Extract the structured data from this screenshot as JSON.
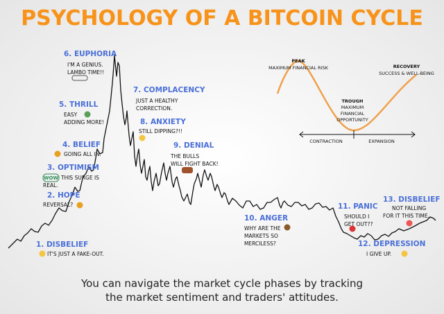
{
  "title": "PSYCHOLOGY OF A BITCOIN CYCLE",
  "phases": [
    {
      "name": "1. DISBELIEF",
      "lines": [
        "IT'S JUST A FAKE-OUT."
      ]
    },
    {
      "name": "2. HOPE",
      "lines": [
        "REVERSAL?"
      ]
    },
    {
      "name": "3. OPTIMISM",
      "badge": "WOW",
      "lines": [
        "THIS SURGE IS",
        "REAL."
      ]
    },
    {
      "name": "4. BELIEF",
      "lines": [
        "GOING ALL IN."
      ]
    },
    {
      "name": "5. THRILL",
      "lines": [
        "EASY",
        "ADDING MORE!"
      ]
    },
    {
      "name": "6. EUPHORIA",
      "lines": [
        "I'M A GENIUS.",
        "LAMBO TIME!!"
      ]
    },
    {
      "name": "7. COMPLACENCY",
      "lines": [
        "JUST A HEALTHY",
        "CORRECTION."
      ]
    },
    {
      "name": "8. ANXIETY",
      "lines": [
        "STILL DIPPING?!!"
      ]
    },
    {
      "name": "9. DENIAL",
      "lines": [
        "THE BULLS",
        "WILL FIGHT BACK!"
      ]
    },
    {
      "name": "10. ANGER",
      "lines": [
        "WHY ARE THE",
        "MARKETS SO",
        "MERCILESS?"
      ]
    },
    {
      "name": "11. PANIC",
      "lines": [
        "SHOULD I",
        "GET OUT??"
      ]
    },
    {
      "name": "12. DEPRESSION",
      "lines": [
        "I GIVE UP."
      ]
    },
    {
      "name": "13. DISBELIEF",
      "lines": [
        "NOT FALLING",
        "FOR IT THIS TIME."
      ]
    }
  ],
  "inset": {
    "peak": "PEAK",
    "peak_note": "MAXIMUM FINANCIAL RISK",
    "recovery": "RECOVERY",
    "recovery_note": "SUCCESS  & WELL-BEING",
    "trough": "TROUGH",
    "trough_note": [
      "MAXIMUM",
      "FINANCIAL",
      "OPPORTUNITY"
    ],
    "contraction": "CONTRACTION",
    "expansion": "EXPANSION"
  },
  "footer": [
    "You can navigate the market cycle phases by tracking",
    "the market sentiment and traders' attitudes."
  ]
}
